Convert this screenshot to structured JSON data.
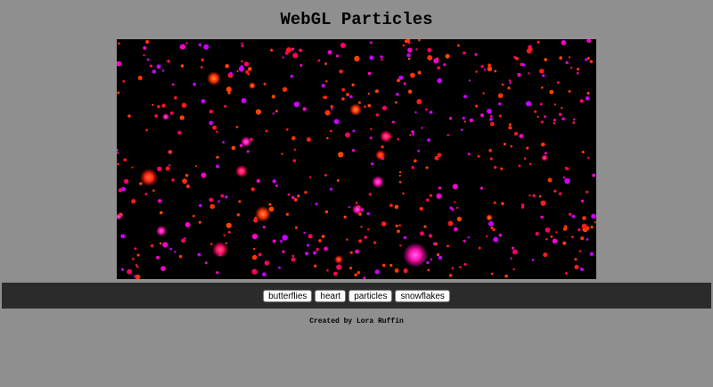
{
  "page": {
    "title": "WebGL Particles",
    "credit": "Created by Lora Ruffin"
  },
  "canvas": {
    "background": "#000000",
    "particle_colors": [
      "#ff1a1a",
      "#ff3300",
      "#ff0066",
      "#ff00cc",
      "#cc00ff",
      "#ff4400"
    ]
  },
  "controls": {
    "buttons": [
      {
        "label": "butterflies"
      },
      {
        "label": "heart"
      },
      {
        "label": "particles"
      },
      {
        "label": "snowflakes"
      }
    ]
  },
  "colors": {
    "page_background": "#8f8f8f",
    "control_bar_background": "#2b2b2b",
    "button_background": "#ffffff"
  }
}
